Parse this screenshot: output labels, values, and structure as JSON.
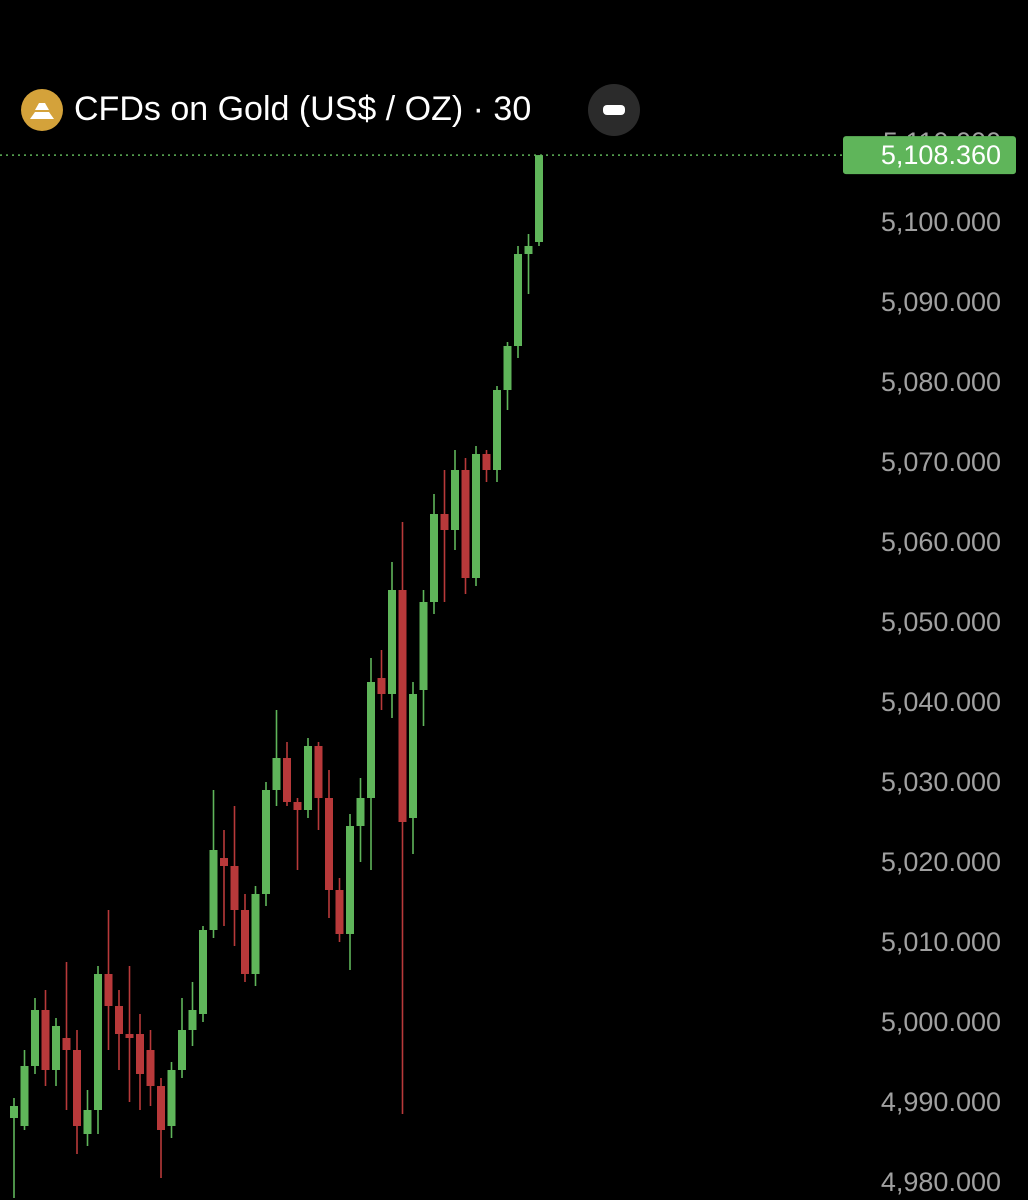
{
  "chart_data": {
    "type": "candlestick",
    "title": "CFDs on Gold (US$ / OZ) · 30",
    "up_color": "#5fb55a",
    "down_color": "#b8393a",
    "last_price": {
      "value": 5108.36,
      "label": "5,108.360"
    },
    "ylim": [
      4977.75,
      5112
    ],
    "yticks": [
      {
        "value": 4980,
        "label": "4,980.000"
      },
      {
        "value": 4990,
        "label": "4,990.000"
      },
      {
        "value": 5000,
        "label": "5,000.000"
      },
      {
        "value": 5010,
        "label": "5,010.000"
      },
      {
        "value": 5020,
        "label": "5,020.000"
      },
      {
        "value": 5030,
        "label": "5,030.000"
      },
      {
        "value": 5040,
        "label": "5,040.000"
      },
      {
        "value": 5050,
        "label": "5,050.000"
      },
      {
        "value": 5060,
        "label": "5,060.000"
      },
      {
        "value": 5070,
        "label": "5,070.000"
      },
      {
        "value": 5080,
        "label": "5,080.000"
      },
      {
        "value": 5090,
        "label": "5,090.000"
      },
      {
        "value": 5100,
        "label": "5,100.000"
      },
      {
        "value": 5110,
        "label": "5,110.000"
      }
    ],
    "series": [
      {
        "open": [
          4988,
          4987,
          4994.5,
          5001.5,
          4994,
          4998,
          4996.5,
          4986,
          4989,
          5006,
          5002,
          4998.5,
          4998.5,
          4996.5,
          4992,
          4987,
          4994,
          4999,
          5001,
          5011.5,
          5020.5,
          5019.5,
          5014,
          5006,
          5016,
          5029,
          5033,
          5027.5,
          5026.5,
          5034.5,
          5028,
          5016.5,
          5011,
          5024.5,
          5028,
          5043,
          5041,
          5054,
          5025.5,
          5041.5,
          5052.5,
          5063.5,
          5061.5,
          5069,
          5055.5,
          5071,
          5069,
          5079,
          5084.5,
          5096,
          5097.5
        ],
        "high": [
          4990.5,
          4996.5,
          5003,
          5004,
          5000.5,
          5007.5,
          4999,
          4991.5,
          5007,
          5014,
          5004,
          5007,
          5001,
          4999,
          4993,
          4995,
          5003,
          5005,
          5012,
          5029,
          5024,
          5027,
          5016,
          5017,
          5030,
          5039,
          5035,
          5028,
          5035.5,
          5035,
          5031.5,
          5018,
          5026,
          5030.5,
          5045.5,
          5046.5,
          5057.5,
          5062.5,
          5042.5,
          5054,
          5066,
          5069,
          5071.5,
          5070.5,
          5072,
          5071.5,
          5079.5,
          5085,
          5097,
          5098.5,
          5108.36
        ],
        "low": [
          4978,
          4986.5,
          4993.5,
          4992,
          4992,
          4989,
          4983.5,
          4984.5,
          4986,
          4996.5,
          4994,
          4990,
          4989,
          4989.5,
          4980.5,
          4985.5,
          4993,
          4997,
          5000,
          5010.5,
          5012,
          5009.5,
          5005,
          5004.5,
          5014.5,
          5027,
          5027,
          5019,
          5025.5,
          5024,
          5013,
          5010,
          5006.5,
          5020,
          5019,
          5039,
          5038,
          4988.5,
          5021,
          5037,
          5051,
          5052.5,
          5059,
          5053.5,
          5054.5,
          5067.5,
          5067.5,
          5076.5,
          5083,
          5091,
          5097
        ],
        "close": [
          4989.5,
          4994.5,
          5001.5,
          4994,
          4999.5,
          4996.5,
          4987,
          4989,
          5006,
          5002,
          4998.5,
          4998,
          4993.5,
          4992,
          4986.5,
          4994,
          4999,
          5001.5,
          5011.5,
          5021.5,
          5019.5,
          5014,
          5006,
          5016,
          5029,
          5033,
          5027.5,
          5026.5,
          5034.5,
          5028,
          5016.5,
          5011,
          5024.5,
          5028,
          5042.5,
          5041,
          5054,
          5025,
          5041,
          5052.5,
          5063.5,
          5061.5,
          5069,
          5055.5,
          5071,
          5069,
          5079,
          5084.5,
          5096,
          5097,
          5108.36
        ]
      }
    ]
  }
}
